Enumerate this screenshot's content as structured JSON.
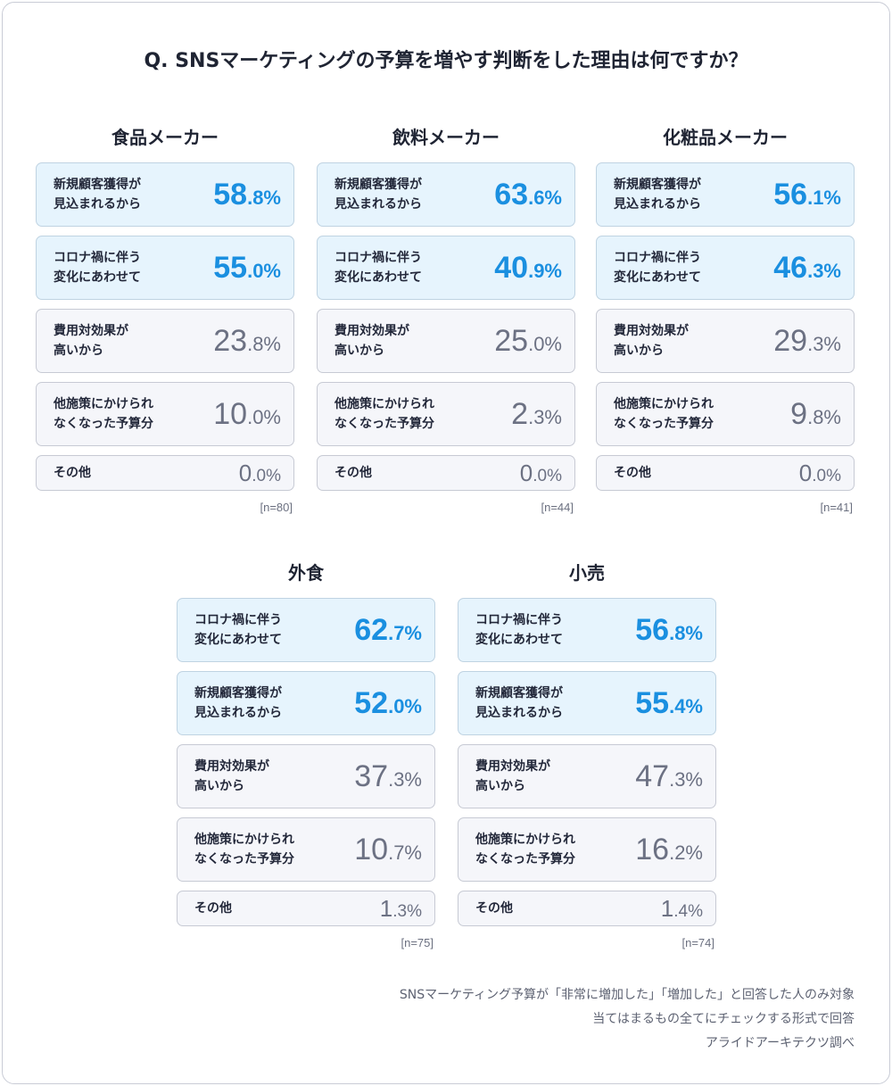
{
  "question": "Q.  SNSマーケティングの予算を増やす判断をした理由は何ですか？",
  "chart_data": [
    {
      "type": "table",
      "title": "食品メーカー",
      "n": "[n=80]",
      "rows": [
        {
          "label": "新規顧客獲得が\n見込まれるから",
          "value": 58.8,
          "int": "58",
          "dec": ".8%",
          "highlight": true
        },
        {
          "label": "コロナ禍に伴う\n変化にあわせて",
          "value": 55.0,
          "int": "55",
          "dec": ".0%",
          "highlight": true
        },
        {
          "label": "費用対効果が\n高いから",
          "value": 23.8,
          "int": "23",
          "dec": ".8%",
          "highlight": false
        },
        {
          "label": "他施策にかけられ\nなくなった予算分",
          "value": 10.0,
          "int": "10",
          "dec": ".0%",
          "highlight": false
        },
        {
          "label": "その他",
          "value": 0.0,
          "int": "0",
          "dec": ".0%",
          "highlight": false
        }
      ]
    },
    {
      "type": "table",
      "title": "飲料メーカー",
      "n": "[n=44]",
      "rows": [
        {
          "label": "新規顧客獲得が\n見込まれるから",
          "value": 63.6,
          "int": "63",
          "dec": ".6%",
          "highlight": true
        },
        {
          "label": "コロナ禍に伴う\n変化にあわせて",
          "value": 40.9,
          "int": "40",
          "dec": ".9%",
          "highlight": true
        },
        {
          "label": "費用対効果が\n高いから",
          "value": 25.0,
          "int": "25",
          "dec": ".0%",
          "highlight": false
        },
        {
          "label": "他施策にかけられ\nなくなった予算分",
          "value": 2.3,
          "int": "2",
          "dec": ".3%",
          "highlight": false
        },
        {
          "label": "その他",
          "value": 0.0,
          "int": "0",
          "dec": ".0%",
          "highlight": false
        }
      ]
    },
    {
      "type": "table",
      "title": "化粧品メーカー",
      "n": "[n=41]",
      "rows": [
        {
          "label": "新規顧客獲得が\n見込まれるから",
          "value": 56.1,
          "int": "56",
          "dec": ".1%",
          "highlight": true
        },
        {
          "label": "コロナ禍に伴う\n変化にあわせて",
          "value": 46.3,
          "int": "46",
          "dec": ".3%",
          "highlight": true
        },
        {
          "label": "費用対効果が\n高いから",
          "value": 29.3,
          "int": "29",
          "dec": ".3%",
          "highlight": false
        },
        {
          "label": "他施策にかけられ\nなくなった予算分",
          "value": 9.8,
          "int": "9",
          "dec": ".8%",
          "highlight": false
        },
        {
          "label": "その他",
          "value": 0.0,
          "int": "0",
          "dec": ".0%",
          "highlight": false
        }
      ]
    },
    {
      "type": "table",
      "title": "外食",
      "n": "[n=75]",
      "rows": [
        {
          "label": "コロナ禍に伴う\n変化にあわせて",
          "value": 62.7,
          "int": "62",
          "dec": ".7%",
          "highlight": true
        },
        {
          "label": "新規顧客獲得が\n見込まれるから",
          "value": 52.0,
          "int": "52",
          "dec": ".0%",
          "highlight": true
        },
        {
          "label": "費用対効果が\n高いから",
          "value": 37.3,
          "int": "37",
          "dec": ".3%",
          "highlight": false
        },
        {
          "label": "他施策にかけられ\nなくなった予算分",
          "value": 10.7,
          "int": "10",
          "dec": ".7%",
          "highlight": false
        },
        {
          "label": "その他",
          "value": 1.3,
          "int": "1",
          "dec": ".3%",
          "highlight": false
        }
      ]
    },
    {
      "type": "table",
      "title": "小売",
      "n": "[n=74]",
      "rows": [
        {
          "label": "コロナ禍に伴う\n変化にあわせて",
          "value": 56.8,
          "int": "56",
          "dec": ".8%",
          "highlight": true
        },
        {
          "label": "新規顧客獲得が\n見込まれるから",
          "value": 55.4,
          "int": "55",
          "dec": ".4%",
          "highlight": true
        },
        {
          "label": "費用対効果が\n高いから",
          "value": 47.3,
          "int": "47",
          "dec": ".3%",
          "highlight": false
        },
        {
          "label": "他施策にかけられ\nなくなった予算分",
          "value": 16.2,
          "int": "16",
          "dec": ".2%",
          "highlight": false
        },
        {
          "label": "その他",
          "value": 1.4,
          "int": "1",
          "dec": ".4%",
          "highlight": false
        }
      ]
    }
  ],
  "notes": [
    "SNSマーケティング予算が「非常に増加した」「増加した」と回答した人のみ対象",
    "当てはまるもの全てにチェックする形式で回答",
    "アライドアーキテクツ調べ"
  ],
  "colors": {
    "highlight_text": "#1a8fe0",
    "highlight_bg": "#e6f4fd",
    "normal_text": "#6c7183",
    "normal_bg": "#f5f6fa"
  }
}
